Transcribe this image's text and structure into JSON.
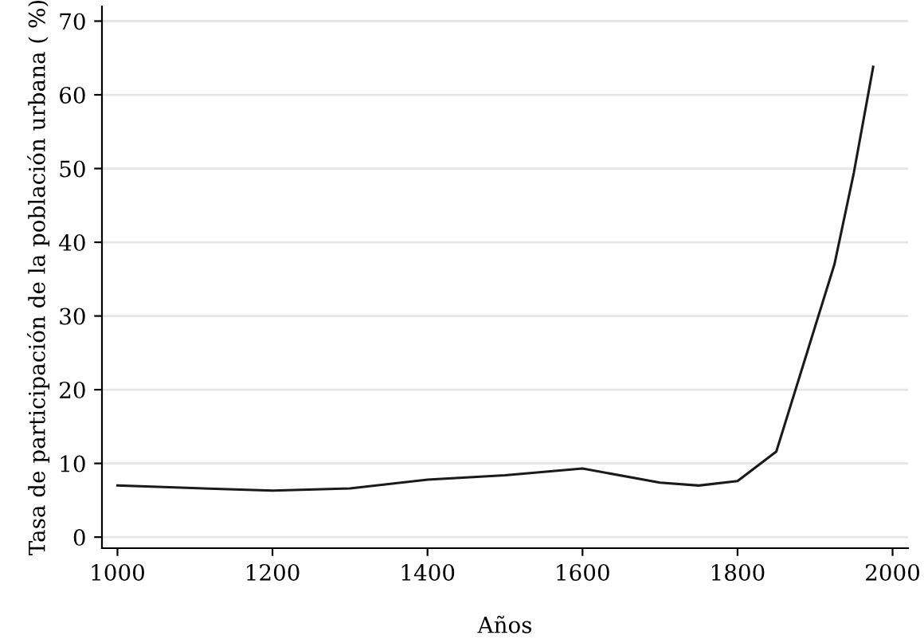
{
  "chart_data": {
    "type": "line",
    "xlabel": "Años",
    "ylabel": "Tasa de participación de la población urbana ( %)",
    "x": [
      1000,
      1200,
      1300,
      1400,
      1500,
      1600,
      1700,
      1750,
      1800,
      1850,
      1925,
      1950,
      1975
    ],
    "series": [
      {
        "color": "#1a1a1a",
        "values": [
          7.0,
          6.3,
          6.6,
          7.8,
          8.4,
          9.3,
          7.4,
          7.0,
          7.6,
          11.6,
          37.0,
          49.4,
          63.8
        ]
      }
    ],
    "xlim": [
      980,
      2020
    ],
    "ylim": [
      -1.5,
      72
    ],
    "xticks": [
      1000,
      1200,
      1400,
      1600,
      1800,
      2000
    ],
    "yticks": [
      0,
      10,
      20,
      30,
      40,
      50,
      60,
      70
    ],
    "grid": "y",
    "marker": "none",
    "line_style": "solid"
  }
}
